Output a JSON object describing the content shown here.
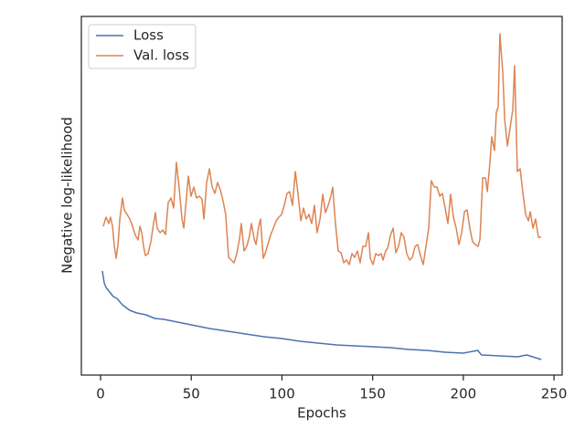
{
  "chart_data": {
    "type": "line",
    "xlabel": "Epochs",
    "ylabel": "Negative log-likelihood",
    "xlim": [
      -10.6,
      254.5
    ],
    "xticks": [
      0,
      50,
      100,
      150,
      200,
      250
    ],
    "ylim": [
      0,
      393
    ],
    "legend": "upper left",
    "series": [
      {
        "name": "Loss",
        "color": "#4c72b0",
        "x": [
          1,
          2,
          3,
          5,
          7,
          9,
          12,
          16,
          20,
          25,
          30,
          35,
          40,
          45,
          50,
          55,
          60,
          70,
          80,
          90,
          100,
          110,
          120,
          130,
          140,
          150,
          160,
          170,
          180,
          190,
          200,
          208,
          210,
          220,
          230,
          235,
          243
        ],
        "values": [
          114,
          101,
          96,
          91,
          86,
          84,
          77,
          71,
          68,
          66,
          62,
          61,
          59,
          57,
          55,
          53,
          51,
          48,
          45,
          42,
          40,
          37,
          35,
          33,
          32,
          31,
          30,
          28,
          27,
          25,
          24,
          27,
          22,
          21,
          20,
          22,
          17
        ]
      },
      {
        "name": "Val. loss",
        "color": "#dd8452",
        "x": [
          1.5,
          3.0,
          4.5,
          5.5,
          6.6,
          7.6,
          8.6,
          9.6,
          10.6,
          12.1,
          13.1,
          14.6,
          16.1,
          17.6,
          19.2,
          20.7,
          21.7,
          22.7,
          23.7,
          24.7,
          26.2,
          27.7,
          29.2,
          30.2,
          31.2,
          32.8,
          34.3,
          35.8,
          37.3,
          38.8,
          40.3,
          41.8,
          43.3,
          44.9,
          45.9,
          47.4,
          48.4,
          49.9,
          51.4,
          52.9,
          54.4,
          55.9,
          57.0,
          58.5,
          60.0,
          61.5,
          63.0,
          64.5,
          66.0,
          67.5,
          69.0,
          70.6,
          72.1,
          73.6,
          75.1,
          76.6,
          77.6,
          79.1,
          80.6,
          82.2,
          83.2,
          84.7,
          85.7,
          87.2,
          88.2,
          89.7,
          90.7,
          92.2,
          93.7,
          95.3,
          96.8,
          98.3,
          99.8,
          101.3,
          102.8,
          104.3,
          105.8,
          107.4,
          108.9,
          110.4,
          111.9,
          113.4,
          114.9,
          116.4,
          117.9,
          119.4,
          121.0,
          122.5,
          124.0,
          125.5,
          127.0,
          128.0,
          129.5,
          131.0,
          132.6,
          134.1,
          135.6,
          137.1,
          138.6,
          140.1,
          141.6,
          143.1,
          144.6,
          146.2,
          147.7,
          148.7,
          150.2,
          151.7,
          153.2,
          154.7,
          155.7,
          157.2,
          158.3,
          159.8,
          161.3,
          162.8,
          164.3,
          165.8,
          167.3,
          168.8,
          170.4,
          171.9,
          173.4,
          174.9,
          176.4,
          177.9,
          179.4,
          180.9,
          182.4,
          184.0,
          185.5,
          187.0,
          188.5,
          190.0,
          191.5,
          193.0,
          194.5,
          196.1,
          197.6,
          199.1,
          200.6,
          202.1,
          203.6,
          205.1,
          206.6,
          208.2,
          209.2,
          210.7,
          212.2,
          213.2,
          214.7,
          215.7,
          217.2,
          218.2,
          219.2,
          220.2,
          221.8,
          222.8,
          224.3,
          225.8,
          227.3,
          228.3,
          229.8,
          231.3,
          232.8,
          234.4,
          235.9,
          236.9,
          238.4,
          239.9,
          241.4,
          242.9
        ],
        "values": [
          163,
          173,
          166,
          173,
          163,
          141,
          128,
          143,
          171,
          194,
          181,
          176,
          171,
          163,
          153,
          148,
          163,
          156,
          141,
          131,
          133,
          146,
          166,
          178,
          161,
          156,
          159,
          154,
          189,
          194,
          183,
          233,
          206,
          171,
          161,
          196,
          218,
          196,
          206,
          194,
          196,
          193,
          171,
          211,
          226,
          206,
          199,
          211,
          203,
          191,
          176,
          129,
          126,
          123,
          133,
          149,
          166,
          136,
          141,
          153,
          166,
          149,
          143,
          163,
          171,
          128,
          133,
          143,
          153,
          161,
          169,
          173,
          176,
          186,
          199,
          201,
          186,
          223,
          198,
          169,
          183,
          171,
          176,
          166,
          186,
          156,
          171,
          198,
          178,
          186,
          196,
          206,
          166,
          136,
          134,
          123,
          126,
          121,
          133,
          129,
          136,
          123,
          141,
          141,
          156,
          128,
          121,
          133,
          131,
          133,
          126,
          136,
          139,
          153,
          161,
          134,
          141,
          156,
          151,
          133,
          126,
          129,
          141,
          143,
          131,
          121,
          141,
          161,
          213,
          206,
          206,
          196,
          199,
          183,
          166,
          198,
          173,
          161,
          143,
          156,
          179,
          181,
          161,
          146,
          143,
          141,
          149,
          216,
          216,
          201,
          233,
          261,
          246,
          288,
          294,
          374,
          331,
          281,
          251,
          271,
          291,
          339,
          223,
          226,
          201,
          176,
          169,
          179,
          161,
          171,
          151,
          151
        ]
      }
    ]
  }
}
